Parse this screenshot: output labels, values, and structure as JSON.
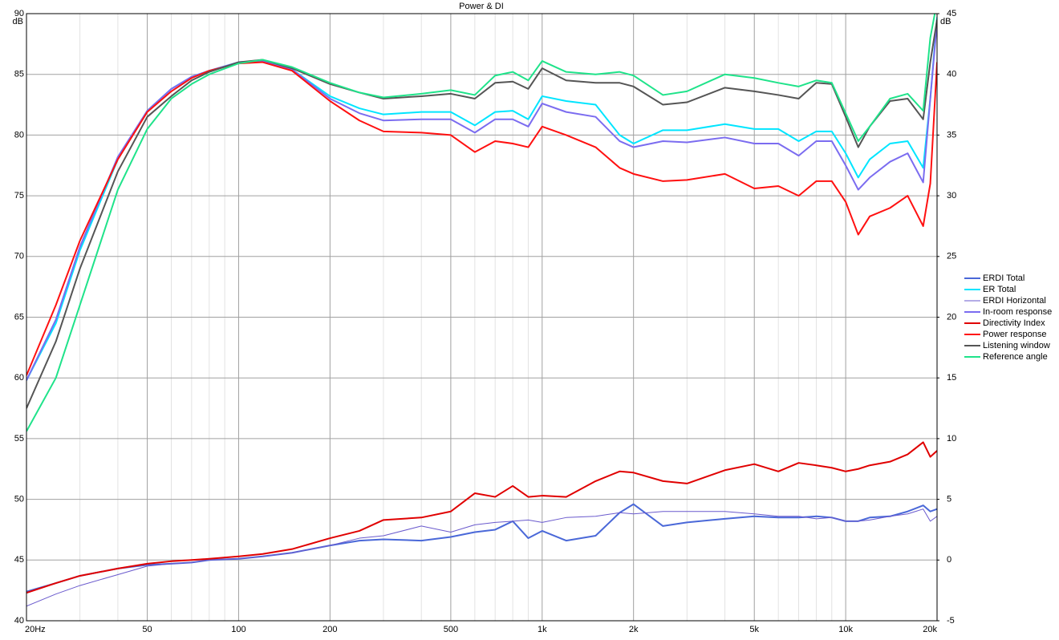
{
  "chart_data": {
    "type": "line",
    "title": "Power & DI",
    "ylabel": "dB",
    "y2label": "dB",
    "xscale": "log",
    "grid": true,
    "legend": "right",
    "xlim": [
      20,
      20000
    ],
    "ylim": [
      40,
      90
    ],
    "y2lim": [
      -5,
      45
    ],
    "xticks": [
      {
        "value": 20,
        "label": "20Hz"
      },
      50,
      100,
      200,
      500,
      {
        "value": 1000,
        "label": "1k"
      },
      {
        "value": 2000,
        "label": "2k"
      },
      {
        "value": 5000,
        "label": "5k"
      },
      {
        "value": 10000,
        "label": "10k"
      },
      {
        "value": 20000,
        "label": "20k"
      }
    ],
    "xminorticks": [
      30,
      40,
      60,
      70,
      80,
      90,
      300,
      400,
      600,
      700,
      800,
      900,
      3000,
      4000,
      6000,
      7000,
      8000,
      9000
    ],
    "yticks": [
      40,
      45,
      50,
      55,
      60,
      65,
      70,
      75,
      80,
      85,
      90
    ],
    "y2ticks": [
      -5,
      0,
      5,
      10,
      15,
      20,
      25,
      30,
      35,
      40,
      45
    ],
    "x": [
      20,
      25,
      30,
      40,
      50,
      60,
      70,
      80,
      100,
      120,
      150,
      200,
      250,
      300,
      400,
      500,
      600,
      700,
      800,
      900,
      1000,
      1200,
      1500,
      1800,
      2000,
      2500,
      3000,
      4000,
      5000,
      6000,
      7000,
      8000,
      9000,
      10000,
      11000,
      12000,
      14000,
      16000,
      18000,
      19000,
      20000
    ],
    "series": [
      {
        "name": "ERDI Total",
        "color": "#4a68d8",
        "width": 2,
        "axis": "y2",
        "values": [
          -2.6,
          -1.9,
          -1.3,
          -0.7,
          -0.4,
          -0.3,
          -0.2,
          0,
          0.1,
          0.3,
          0.6,
          1.2,
          1.6,
          1.7,
          1.6,
          1.9,
          2.3,
          2.5,
          3.2,
          1.8,
          2.4,
          1.6,
          2,
          3.9,
          4.6,
          2.8,
          3.1,
          3.4,
          3.6,
          3.5,
          3.5,
          3.6,
          3.5,
          3.2,
          3.2,
          3.5,
          3.6,
          4.0,
          4.5,
          4.0,
          4.2
        ]
      },
      {
        "name": "ER Total",
        "color": "#00e5ff",
        "width": 2,
        "values": [
          59.8,
          64.5,
          70.5,
          78,
          82,
          83.8,
          84.8,
          85.3,
          86,
          86.1,
          85.4,
          83.2,
          82.2,
          81.7,
          81.9,
          81.9,
          80.8,
          81.9,
          82,
          81.3,
          83.2,
          82.8,
          82.5,
          80,
          79.3,
          80.4,
          80.4,
          80.9,
          80.5,
          80.5,
          79.5,
          80.3,
          80.3,
          78.5,
          76.5,
          78,
          79.3,
          79.5,
          77.3,
          83,
          89.7
        ]
      },
      {
        "name": "ERDI Horizontal",
        "color": "#6a5acd",
        "width": 1,
        "axis": "y2",
        "values": [
          -3.8,
          -2.8,
          -2.1,
          -1.2,
          -0.5,
          -0.3,
          -0.2,
          0,
          0.1,
          0.3,
          0.6,
          1.2,
          1.8,
          2.0,
          2.8,
          2.3,
          2.9,
          3.1,
          3.2,
          3.3,
          3.1,
          3.5,
          3.6,
          3.9,
          3.8,
          4,
          4,
          4,
          3.8,
          3.6,
          3.6,
          3.4,
          3.5,
          3.2,
          3.2,
          3.3,
          3.6,
          3.8,
          4.2,
          3.2,
          3.6
        ]
      },
      {
        "name": "In-room response",
        "color": "#7b6cf0",
        "width": 2,
        "values": [
          59.8,
          64.8,
          70.8,
          78.2,
          82,
          83.8,
          84.8,
          85.3,
          86,
          86.1,
          85.4,
          83,
          81.8,
          81.2,
          81.3,
          81.3,
          80.2,
          81.3,
          81.3,
          80.7,
          82.6,
          81.9,
          81.5,
          79.5,
          79,
          79.5,
          79.4,
          79.8,
          79.3,
          79.3,
          78.3,
          79.5,
          79.5,
          77.5,
          75.5,
          76.5,
          77.8,
          78.5,
          76.1,
          83,
          89.3
        ]
      },
      {
        "name": "Directivity Index",
        "color": "#e00000",
        "width": 2,
        "axis": "y2",
        "values": [
          -2.7,
          -1.9,
          -1.3,
          -0.7,
          -0.3,
          -0.1,
          0,
          0.1,
          0.3,
          0.5,
          0.9,
          1.8,
          2.4,
          3.3,
          3.5,
          4,
          5.5,
          5.2,
          6.1,
          5.2,
          5.3,
          5.2,
          6.5,
          7.3,
          7.2,
          6.5,
          6.3,
          7.4,
          7.9,
          7.3,
          8.0,
          7.8,
          7.6,
          7.3,
          7.5,
          7.8,
          8.1,
          8.7,
          9.7,
          8.5,
          9.0
        ]
      },
      {
        "name": "Power response",
        "color": "#ff1010",
        "width": 2,
        "values": [
          60.2,
          66,
          71.3,
          78,
          81.9,
          83.6,
          84.7,
          85.3,
          85.9,
          86,
          85.3,
          82.8,
          81.2,
          80.3,
          80.2,
          80,
          78.6,
          79.5,
          79.3,
          79,
          80.7,
          80,
          79,
          77.3,
          76.8,
          76.2,
          76.3,
          76.8,
          75.6,
          75.8,
          75,
          76.2,
          76.2,
          74.5,
          71.8,
          73.3,
          74,
          75,
          72.5,
          76,
          86
        ]
      },
      {
        "name": "Listening window",
        "color": "#555555",
        "width": 2,
        "values": [
          57.5,
          63,
          69,
          77,
          81.5,
          83.2,
          84.5,
          85.2,
          86,
          86.2,
          85.5,
          84.2,
          83.5,
          83,
          83.2,
          83.4,
          83,
          84.3,
          84.4,
          83.8,
          85.5,
          84.5,
          84.3,
          84.3,
          84,
          82.5,
          82.7,
          83.9,
          83.6,
          83.3,
          83,
          84.3,
          84.2,
          81.5,
          79,
          80.7,
          82.8,
          83,
          81.3,
          86,
          89.5
        ]
      },
      {
        "name": "Reference angle",
        "color": "#1fe38a",
        "width": 2,
        "values": [
          55.6,
          60,
          66,
          75.5,
          80.5,
          83,
          84.2,
          85,
          85.9,
          86.2,
          85.6,
          84.3,
          83.5,
          83.1,
          83.4,
          83.7,
          83.3,
          84.9,
          85.2,
          84.5,
          86.1,
          85.2,
          85,
          85.2,
          84.9,
          83.3,
          83.6,
          85,
          84.7,
          84.3,
          84,
          84.5,
          84.3,
          81.8,
          79.5,
          80.7,
          83,
          83.4,
          82,
          88,
          91
        ]
      }
    ]
  }
}
